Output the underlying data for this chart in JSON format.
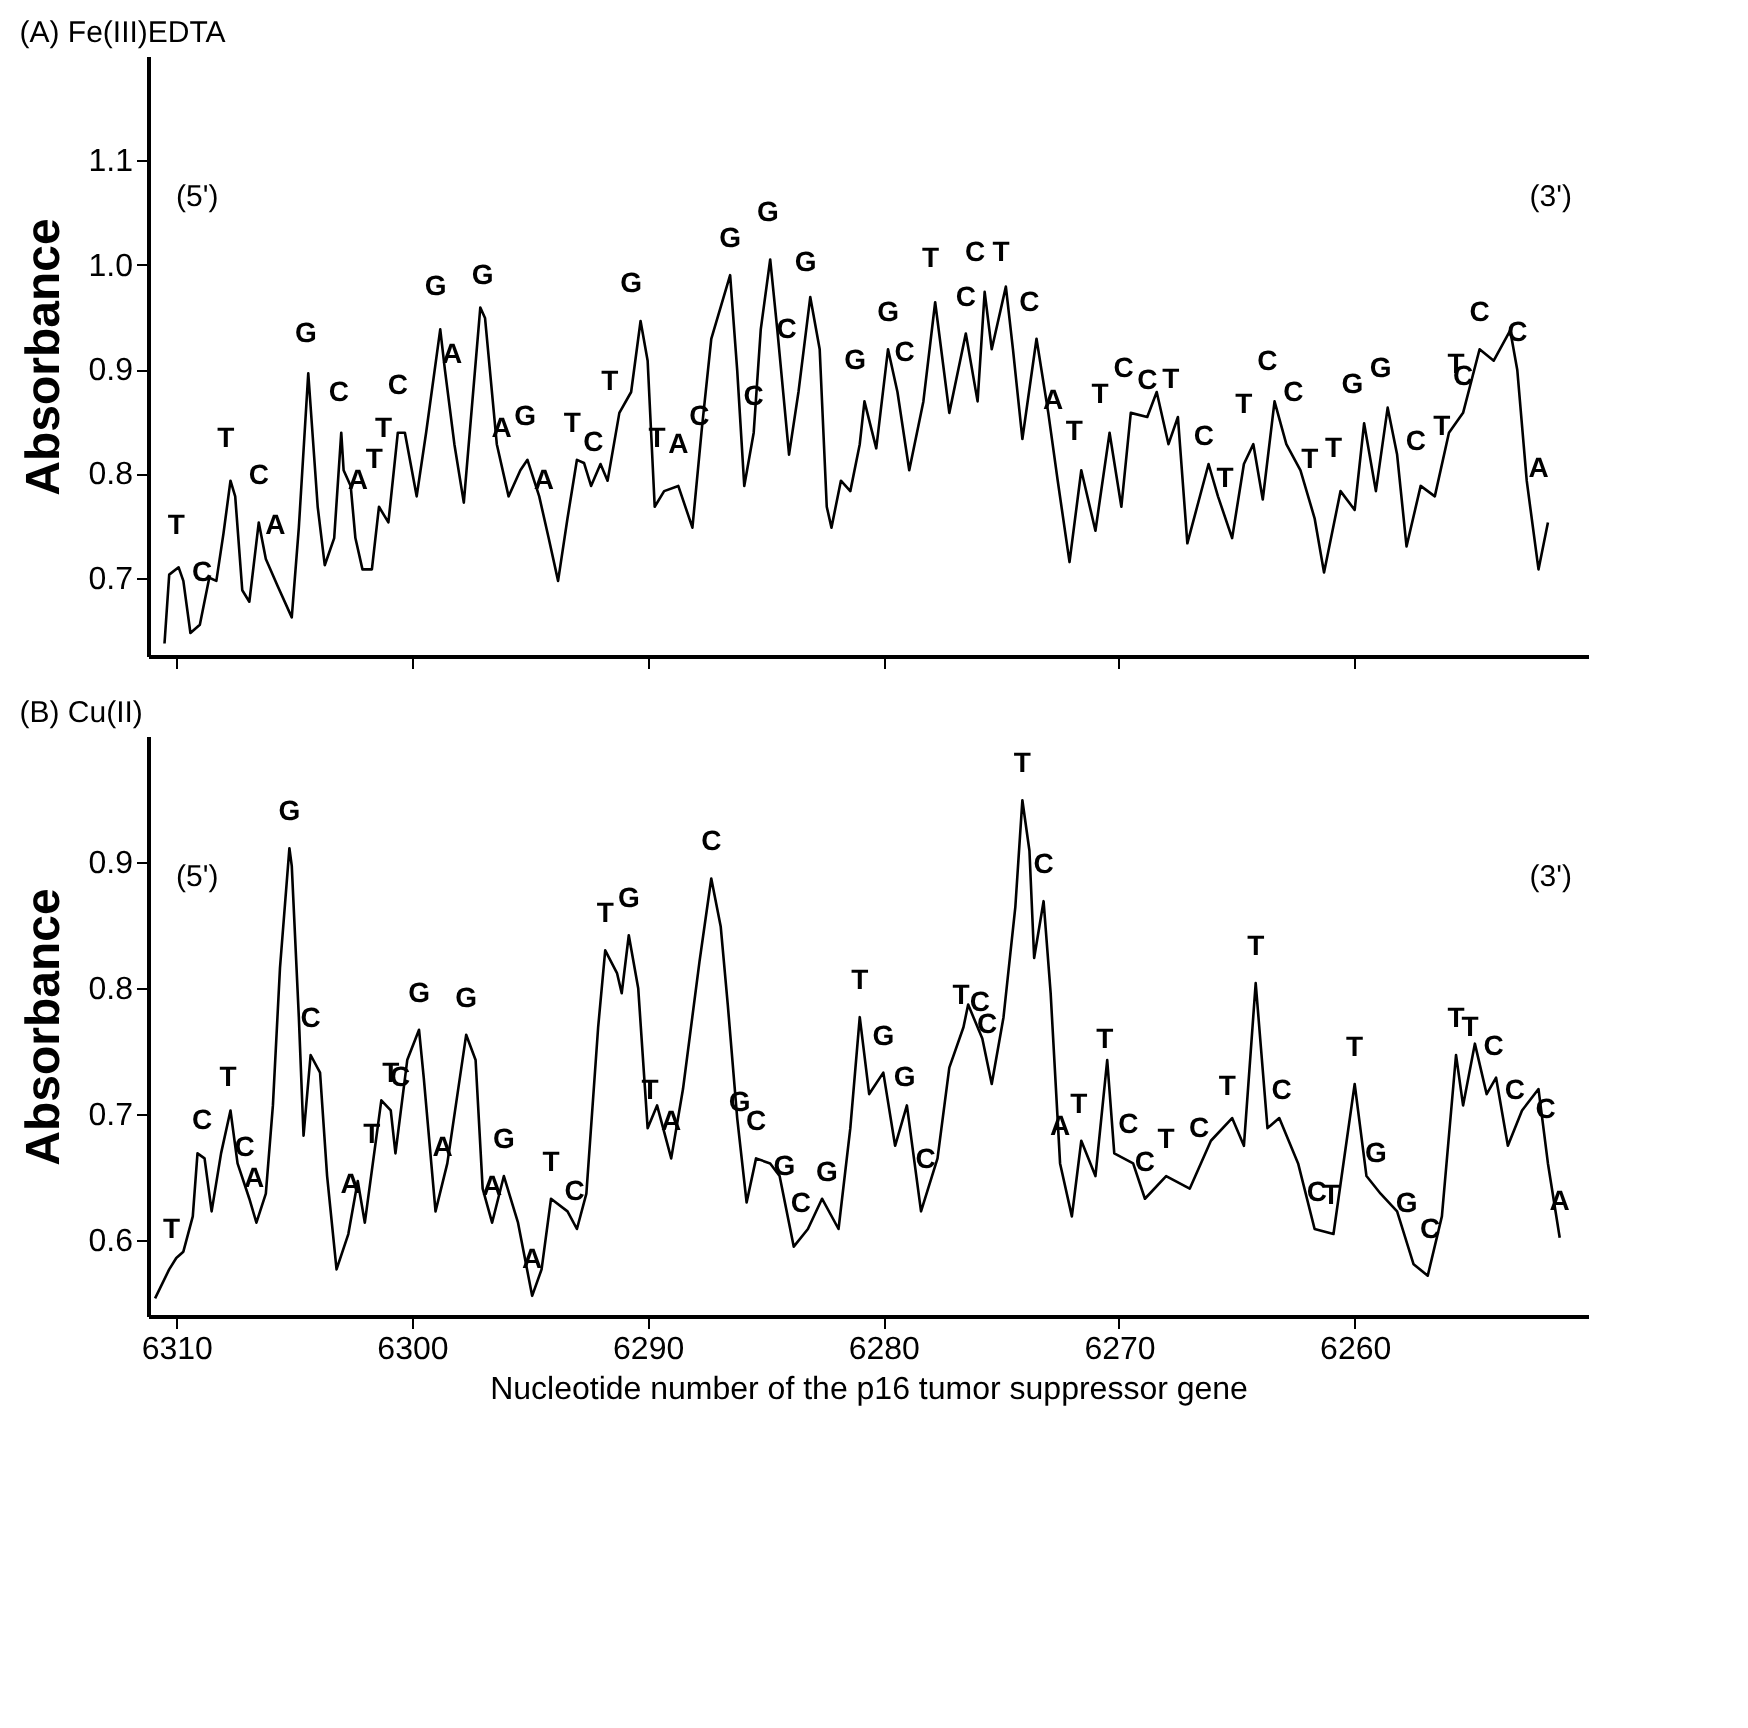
{
  "chart_data": [
    {
      "type": "line",
      "title": "(A) Fe(III)EDTA",
      "ylabel": "Absorbance",
      "xlim": [
        6311.2,
        6250.1
      ],
      "ylim": [
        0.625,
        1.2
      ],
      "xticks": [
        6310,
        6300,
        6290,
        6280,
        6270,
        6260
      ],
      "yticks": [
        0.7,
        0.8,
        0.9,
        {
          "value": 1,
          "label": "1.0"
        },
        1.1
      ],
      "tick_labels": "y",
      "x": [
        6310.5,
        6310.3,
        6309.9,
        6309.7,
        6309.4,
        6309.0,
        6308.6,
        6308.3,
        6308.0,
        6307.7,
        6307.5,
        6307.2,
        6306.9,
        6306.5,
        6306.2,
        6305.7,
        6305.1,
        6304.8,
        6304.4,
        6304.0,
        6303.7,
        6303.3,
        6303.0,
        6302.9,
        6302.6,
        6302.4,
        6302.1,
        6301.7,
        6301.4,
        6301.0,
        6300.6,
        6300.3,
        6299.8,
        6299.4,
        6298.8,
        6298.6,
        6298.2,
        6297.8,
        6297.1,
        6296.9,
        6296.4,
        6295.9,
        6295.4,
        6295.1,
        6294.6,
        6294.2,
        6293.8,
        6293.4,
        6293.0,
        6292.7,
        6292.4,
        6292.0,
        6291.7,
        6291.2,
        6290.7,
        6290.3,
        6290.0,
        6289.7,
        6289.3,
        6288.7,
        6288.1,
        6287.7,
        6287.3,
        6286.5,
        6286.2,
        6285.9,
        6285.5,
        6285.2,
        6284.8,
        6284.5,
        6284.0,
        6283.6,
        6283.1,
        6282.7,
        6282.4,
        6282.2,
        6281.8,
        6281.4,
        6281.0,
        6280.8,
        6280.3,
        6279.8,
        6279.4,
        6278.9,
        6278.3,
        6277.8,
        6277.2,
        6276.5,
        6276.0,
        6275.7,
        6275.4,
        6274.8,
        6274.5,
        6274.1,
        6273.5,
        6273.0,
        6272.6,
        6272.1,
        6271.6,
        6271.0,
        6270.4,
        6269.9,
        6269.5,
        6268.8,
        6268.4,
        6267.9,
        6267.5,
        6267.1,
        6266.2,
        6265.8,
        6265.2,
        6264.7,
        6264.3,
        6263.9,
        6263.4,
        6262.9,
        6262.3,
        6261.7,
        6261.3,
        6260.6,
        6260.0,
        6259.6,
        6259.1,
        6258.6,
        6258.2,
        6257.8,
        6257.2,
        6256.6,
        6256.0,
        6255.4,
        6254.7,
        6254.1,
        6253.4,
        6253.1,
        6252.7,
        6252.2,
        6251.8
      ],
      "series": [
        {
          "color": "#000000",
          "values": [
            0.637,
            0.703,
            0.71,
            0.697,
            0.647,
            0.655,
            0.7,
            0.697,
            0.742,
            0.793,
            0.778,
            0.688,
            0.677,
            0.753,
            0.718,
            0.692,
            0.662,
            0.748,
            0.896,
            0.768,
            0.712,
            0.738,
            0.839,
            0.803,
            0.788,
            0.738,
            0.708,
            0.708,
            0.768,
            0.753,
            0.839,
            0.839,
            0.778,
            0.839,
            0.938,
            0.899,
            0.828,
            0.772,
            0.959,
            0.949,
            0.828,
            0.778,
            0.803,
            0.813,
            0.778,
            0.738,
            0.697,
            0.757,
            0.813,
            0.81,
            0.788,
            0.809,
            0.793,
            0.858,
            0.878,
            0.946,
            0.908,
            0.768,
            0.783,
            0.788,
            0.748,
            0.843,
            0.929,
            0.99,
            0.899,
            0.788,
            0.839,
            0.938,
            1.005,
            0.938,
            0.818,
            0.878,
            0.969,
            0.919,
            0.768,
            0.748,
            0.793,
            0.783,
            0.828,
            0.869,
            0.824,
            0.919,
            0.878,
            0.803,
            0.869,
            0.964,
            0.858,
            0.934,
            0.869,
            0.974,
            0.919,
            0.979,
            0.919,
            0.833,
            0.929,
            0.858,
            0.793,
            0.715,
            0.803,
            0.745,
            0.839,
            0.768,
            0.858,
            0.854,
            0.878,
            0.828,
            0.854,
            0.733,
            0.809,
            0.778,
            0.738,
            0.809,
            0.828,
            0.775,
            0.869,
            0.828,
            0.803,
            0.757,
            0.705,
            0.783,
            0.765,
            0.848,
            0.783,
            0.863,
            0.818,
            0.73,
            0.788,
            0.778,
            0.839,
            0.858,
            0.919,
            0.908,
            0.937,
            0.899,
            0.793,
            0.708,
            0.753
          ]
        }
      ],
      "annotations": [
        "(5')",
        "(3')",
        {
          "text": "T",
          "x": 6310.0,
          "y": 0.715
        },
        {
          "text": "C",
          "x": 6308.9,
          "y": 0.67
        },
        {
          "text": "T",
          "x": 6307.9,
          "y": 0.798
        },
        {
          "text": "C",
          "x": 6306.5,
          "y": 0.763
        },
        {
          "text": "A",
          "x": 6305.8,
          "y": 0.715
        },
        {
          "text": "G",
          "x": 6304.5,
          "y": 0.899
        },
        {
          "text": "C",
          "x": 6303.1,
          "y": 0.843
        },
        {
          "text": "A",
          "x": 6302.3,
          "y": 0.758
        },
        {
          "text": "T",
          "x": 6301.6,
          "y": 0.778
        },
        {
          "text": "T",
          "x": 6301.2,
          "y": 0.808
        },
        {
          "text": "C",
          "x": 6300.6,
          "y": 0.849
        },
        {
          "text": "G",
          "x": 6299.0,
          "y": 0.944
        },
        {
          "text": "A",
          "x": 6298.3,
          "y": 0.879
        },
        {
          "text": "G",
          "x": 6297.0,
          "y": 0.955
        },
        {
          "text": "A",
          "x": 6296.2,
          "y": 0.808
        },
        {
          "text": "G",
          "x": 6295.2,
          "y": 0.82
        },
        {
          "text": "A",
          "x": 6294.4,
          "y": 0.758
        },
        {
          "text": "T",
          "x": 6293.2,
          "y": 0.813
        },
        {
          "text": "C",
          "x": 6292.3,
          "y": 0.795
        },
        {
          "text": "T",
          "x": 6291.6,
          "y": 0.853
        },
        {
          "text": "G",
          "x": 6290.7,
          "y": 0.947
        },
        {
          "text": "T",
          "x": 6289.6,
          "y": 0.798
        },
        {
          "text": "A",
          "x": 6288.7,
          "y": 0.793
        },
        {
          "text": "C",
          "x": 6287.8,
          "y": 0.82
        },
        {
          "text": "G",
          "x": 6286.5,
          "y": 0.99
        },
        {
          "text": "C",
          "x": 6285.5,
          "y": 0.839
        },
        {
          "text": "G",
          "x": 6284.9,
          "y": 1.015
        },
        {
          "text": "C",
          "x": 6284.1,
          "y": 0.903
        },
        {
          "text": "G",
          "x": 6283.3,
          "y": 0.967
        },
        {
          "text": "G",
          "x": 6281.2,
          "y": 0.873
        },
        {
          "text": "G",
          "x": 6279.8,
          "y": 0.919
        },
        {
          "text": "C",
          "x": 6279.1,
          "y": 0.881
        },
        {
          "text": "T",
          "x": 6278.0,
          "y": 0.971
        },
        {
          "text": "C",
          "x": 6276.5,
          "y": 0.934
        },
        {
          "text": "C",
          "x": 6276.1,
          "y": 0.977
        },
        {
          "text": "T",
          "x": 6275.0,
          "y": 0.977
        },
        {
          "text": "C",
          "x": 6273.8,
          "y": 0.929
        },
        {
          "text": "A",
          "x": 6272.8,
          "y": 0.835
        },
        {
          "text": "T",
          "x": 6271.9,
          "y": 0.805
        },
        {
          "text": "T",
          "x": 6270.8,
          "y": 0.841
        },
        {
          "text": "C",
          "x": 6269.8,
          "y": 0.866
        },
        {
          "text": "C",
          "x": 6268.8,
          "y": 0.854
        },
        {
          "text": "T",
          "x": 6267.8,
          "y": 0.855
        },
        {
          "text": "C",
          "x": 6266.4,
          "y": 0.8
        },
        {
          "text": "T",
          "x": 6265.5,
          "y": 0.76
        },
        {
          "text": "T",
          "x": 6264.7,
          "y": 0.831
        },
        {
          "text": "C",
          "x": 6263.7,
          "y": 0.872
        },
        {
          "text": "C",
          "x": 6262.6,
          "y": 0.843
        },
        {
          "text": "T",
          "x": 6261.9,
          "y": 0.778
        },
        {
          "text": "T",
          "x": 6260.9,
          "y": 0.789
        },
        {
          "text": "G",
          "x": 6260.1,
          "y": 0.85
        },
        {
          "text": "G",
          "x": 6258.9,
          "y": 0.866
        },
        {
          "text": "C",
          "x": 6257.4,
          "y": 0.796
        },
        {
          "text": "T",
          "x": 6256.3,
          "y": 0.81
        },
        {
          "text": "T",
          "x": 6255.7,
          "y": 0.869
        },
        {
          "text": "C",
          "x": 6255.4,
          "y": 0.858
        },
        {
          "text": "C",
          "x": 6254.7,
          "y": 0.919
        },
        {
          "text": "C",
          "x": 6253.1,
          "y": 0.9
        },
        {
          "text": "A",
          "x": 6252.2,
          "y": 0.77
        }
      ]
    },
    {
      "type": "line",
      "title": "(B) Cu(II)",
      "xlabel": "Nucleotide number of the p16 tumor suppressor gene",
      "ylabel": "Absorbance",
      "xlim": [
        6311.2,
        6250.1
      ],
      "ylim": [
        0.54,
        1.0
      ],
      "xticks": [
        6310,
        6300,
        6290,
        6280,
        6270,
        6260
      ],
      "yticks": [
        0.6,
        0.7,
        0.8,
        0.9
      ],
      "x": [
        6310.9,
        6310.3,
        6310.0,
        6309.7,
        6309.3,
        6309.1,
        6308.8,
        6308.5,
        6308.1,
        6307.7,
        6307.4,
        6306.9,
        6306.6,
        6306.2,
        6305.9,
        6305.6,
        6305.2,
        6305.1,
        6304.8,
        6304.6,
        6304.3,
        6303.9,
        6303.6,
        6303.2,
        6302.7,
        6302.3,
        6302.0,
        6301.3,
        6300.9,
        6300.7,
        6300.2,
        6299.7,
        6299.5,
        6299.0,
        6298.5,
        6297.7,
        6297.3,
        6297.0,
        6296.6,
        6296.1,
        6295.5,
        6294.9,
        6294.5,
        6294.1,
        6293.4,
        6293.0,
        6292.6,
        6292.1,
        6291.8,
        6291.3,
        6291.1,
        6290.8,
        6290.4,
        6290.0,
        6289.6,
        6289.0,
        6288.5,
        6287.8,
        6287.3,
        6286.9,
        6286.6,
        6286.2,
        6285.8,
        6285.4,
        6284.8,
        6284.4,
        6283.8,
        6283.2,
        6282.6,
        6281.9,
        6281.4,
        6281.0,
        6280.6,
        6280.0,
        6279.5,
        6279.0,
        6278.4,
        6277.7,
        6277.2,
        6276.6,
        6276.4,
        6275.8,
        6275.4,
        6274.9,
        6274.4,
        6274.1,
        6273.8,
        6273.6,
        6273.2,
        6272.9,
        6272.5,
        6272.0,
        6271.6,
        6271.0,
        6270.5,
        6270.2,
        6269.4,
        6268.9,
        6268.0,
        6267.0,
        6266.1,
        6265.2,
        6264.7,
        6264.2,
        6263.7,
        6263.2,
        6262.4,
        6261.7,
        6260.9,
        6260.0,
        6259.5,
        6258.9,
        6258.2,
        6257.5,
        6256.9,
        6256.3,
        6255.7,
        6255.4,
        6254.9,
        6254.4,
        6254.0,
        6253.5,
        6252.9,
        6252.2,
        6251.8,
        6251.3
      ],
      "series": [
        {
          "color": "#000000",
          "values": [
            0.554,
            0.577,
            0.586,
            0.591,
            0.619,
            0.669,
            0.665,
            0.623,
            0.669,
            0.703,
            0.661,
            0.633,
            0.614,
            0.637,
            0.707,
            0.816,
            0.911,
            0.897,
            0.777,
            0.683,
            0.747,
            0.733,
            0.651,
            0.577,
            0.605,
            0.647,
            0.614,
            0.711,
            0.703,
            0.669,
            0.743,
            0.767,
            0.729,
            0.623,
            0.661,
            0.763,
            0.743,
            0.641,
            0.614,
            0.651,
            0.614,
            0.556,
            0.577,
            0.633,
            0.623,
            0.609,
            0.637,
            0.769,
            0.83,
            0.812,
            0.796,
            0.842,
            0.8,
            0.689,
            0.707,
            0.665,
            0.72,
            0.821,
            0.887,
            0.849,
            0.787,
            0.697,
            0.63,
            0.665,
            0.661,
            0.651,
            0.595,
            0.609,
            0.633,
            0.609,
            0.689,
            0.777,
            0.716,
            0.733,
            0.675,
            0.707,
            0.623,
            0.665,
            0.737,
            0.769,
            0.787,
            0.76,
            0.724,
            0.777,
            0.864,
            0.949,
            0.909,
            0.824,
            0.869,
            0.796,
            0.661,
            0.619,
            0.679,
            0.651,
            0.743,
            0.669,
            0.661,
            0.633,
            0.651,
            0.641,
            0.679,
            0.697,
            0.675,
            0.804,
            0.689,
            0.697,
            0.661,
            0.609,
            0.605,
            0.724,
            0.651,
            0.637,
            0.623,
            0.581,
            0.572,
            0.619,
            0.747,
            0.707,
            0.756,
            0.716,
            0.729,
            0.675,
            0.703,
            0.72,
            0.661,
            0.602
          ]
        }
      ],
      "annotations": [
        "(5')",
        "(3')",
        {
          "text": "T",
          "x": 6310.2,
          "y": 0.58
        },
        {
          "text": "C",
          "x": 6308.9,
          "y": 0.666
        },
        {
          "text": "T",
          "x": 6307.8,
          "y": 0.7
        },
        {
          "text": "C",
          "x": 6307.1,
          "y": 0.645
        },
        {
          "text": "A",
          "x": 6306.7,
          "y": 0.62
        },
        {
          "text": "G",
          "x": 6305.2,
          "y": 0.911
        },
        {
          "text": "C",
          "x": 6304.3,
          "y": 0.747
        },
        {
          "text": "A",
          "x": 6302.6,
          "y": 0.615
        },
        {
          "text": "T",
          "x": 6301.7,
          "y": 0.655
        },
        {
          "text": "T",
          "x": 6300.9,
          "y": 0.703
        },
        {
          "text": "C",
          "x": 6300.5,
          "y": 0.7
        },
        {
          "text": "G",
          "x": 6299.7,
          "y": 0.767
        },
        {
          "text": "A",
          "x": 6298.7,
          "y": 0.645
        },
        {
          "text": "G",
          "x": 6297.7,
          "y": 0.763
        },
        {
          "text": "A",
          "x": 6296.6,
          "y": 0.614
        },
        {
          "text": "G",
          "x": 6296.1,
          "y": 0.651
        },
        {
          "text": "A",
          "x": 6294.9,
          "y": 0.556
        },
        {
          "text": "T",
          "x": 6294.1,
          "y": 0.633
        },
        {
          "text": "C",
          "x": 6293.1,
          "y": 0.61
        },
        {
          "text": "T",
          "x": 6291.8,
          "y": 0.83
        },
        {
          "text": "G",
          "x": 6290.8,
          "y": 0.842
        },
        {
          "text": "T",
          "x": 6289.9,
          "y": 0.69
        },
        {
          "text": "A",
          "x": 6289.0,
          "y": 0.665
        },
        {
          "text": "C",
          "x": 6287.3,
          "y": 0.887
        },
        {
          "text": "G",
          "x": 6286.1,
          "y": 0.68
        },
        {
          "text": "C",
          "x": 6285.4,
          "y": 0.665
        },
        {
          "text": "G",
          "x": 6284.2,
          "y": 0.63
        },
        {
          "text": "C",
          "x": 6283.5,
          "y": 0.6
        },
        {
          "text": "G",
          "x": 6282.4,
          "y": 0.625
        },
        {
          "text": "T",
          "x": 6281.0,
          "y": 0.777
        },
        {
          "text": "G",
          "x": 6280.0,
          "y": 0.733
        },
        {
          "text": "G",
          "x": 6279.1,
          "y": 0.7
        },
        {
          "text": "C",
          "x": 6278.2,
          "y": 0.635
        },
        {
          "text": "T",
          "x": 6276.7,
          "y": 0.765
        },
        {
          "text": "C",
          "x": 6275.9,
          "y": 0.76
        },
        {
          "text": "C",
          "x": 6275.6,
          "y": 0.742
        },
        {
          "text": "T",
          "x": 6274.1,
          "y": 0.949
        },
        {
          "text": "C",
          "x": 6273.2,
          "y": 0.869
        },
        {
          "text": "A",
          "x": 6272.5,
          "y": 0.661
        },
        {
          "text": "T",
          "x": 6271.7,
          "y": 0.679
        },
        {
          "text": "T",
          "x": 6270.6,
          "y": 0.73
        },
        {
          "text": "C",
          "x": 6269.6,
          "y": 0.663
        },
        {
          "text": "C",
          "x": 6268.9,
          "y": 0.633
        },
        {
          "text": "T",
          "x": 6268.0,
          "y": 0.651
        },
        {
          "text": "C",
          "x": 6266.6,
          "y": 0.66
        },
        {
          "text": "T",
          "x": 6265.4,
          "y": 0.693
        },
        {
          "text": "T",
          "x": 6264.2,
          "y": 0.804
        },
        {
          "text": "C",
          "x": 6263.1,
          "y": 0.69
        },
        {
          "text": "C",
          "x": 6261.6,
          "y": 0.609
        },
        {
          "text": "T",
          "x": 6261.0,
          "y": 0.607
        },
        {
          "text": "T",
          "x": 6260.0,
          "y": 0.724
        },
        {
          "text": "G",
          "x": 6259.1,
          "y": 0.64
        },
        {
          "text": "G",
          "x": 6257.8,
          "y": 0.6
        },
        {
          "text": "C",
          "x": 6256.8,
          "y": 0.58
        },
        {
          "text": "T",
          "x": 6255.7,
          "y": 0.747
        },
        {
          "text": "T",
          "x": 6255.1,
          "y": 0.74
        },
        {
          "text": "C",
          "x": 6254.1,
          "y": 0.725
        },
        {
          "text": "C",
          "x": 6253.2,
          "y": 0.69
        },
        {
          "text": "C",
          "x": 6251.9,
          "y": 0.675
        },
        {
          "text": "A",
          "x": 6251.3,
          "y": 0.602
        }
      ]
    }
  ]
}
